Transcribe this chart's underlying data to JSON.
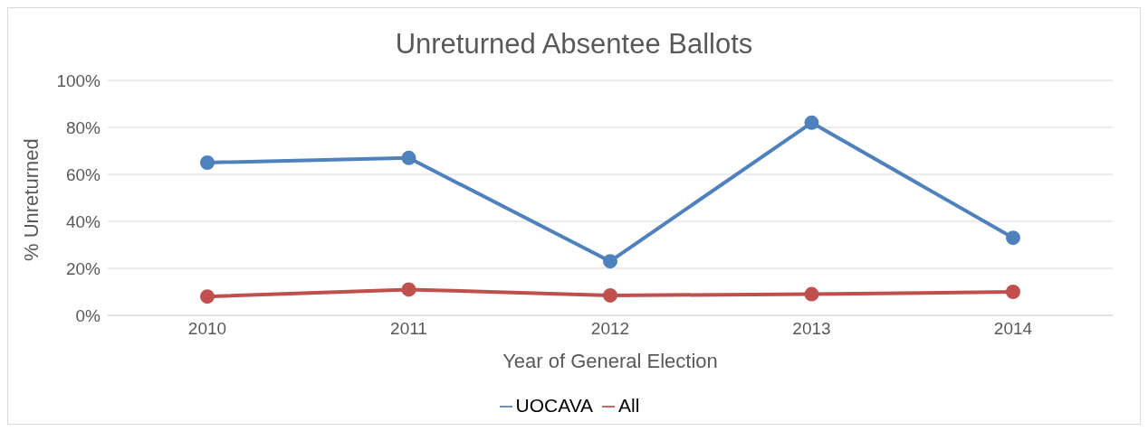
{
  "chart_data": {
    "type": "line",
    "title": "Unreturned Absentee Ballots",
    "xlabel": "Year of General Election",
    "ylabel": "% Unreturned",
    "categories": [
      "2010",
      "2011",
      "2012",
      "2013",
      "2014"
    ],
    "series": [
      {
        "name": "UOCAVA",
        "color": "#4f81bd",
        "values": [
          65,
          67,
          23,
          82,
          33
        ]
      },
      {
        "name": "All",
        "color": "#c0504d",
        "values": [
          8,
          11,
          8.5,
          9,
          10
        ]
      }
    ],
    "ylim": [
      0,
      100
    ],
    "yticks": [
      {
        "value": 0,
        "label": "0%"
      },
      {
        "value": 20,
        "label": "20%"
      },
      {
        "value": 40,
        "label": "40%"
      },
      {
        "value": 60,
        "label": "60%"
      },
      {
        "value": 80,
        "label": "80%"
      },
      {
        "value": 100,
        "label": "100%"
      }
    ],
    "grid": "y",
    "legend": "bottom",
    "marker": "circle",
    "line_style": "solid"
  }
}
